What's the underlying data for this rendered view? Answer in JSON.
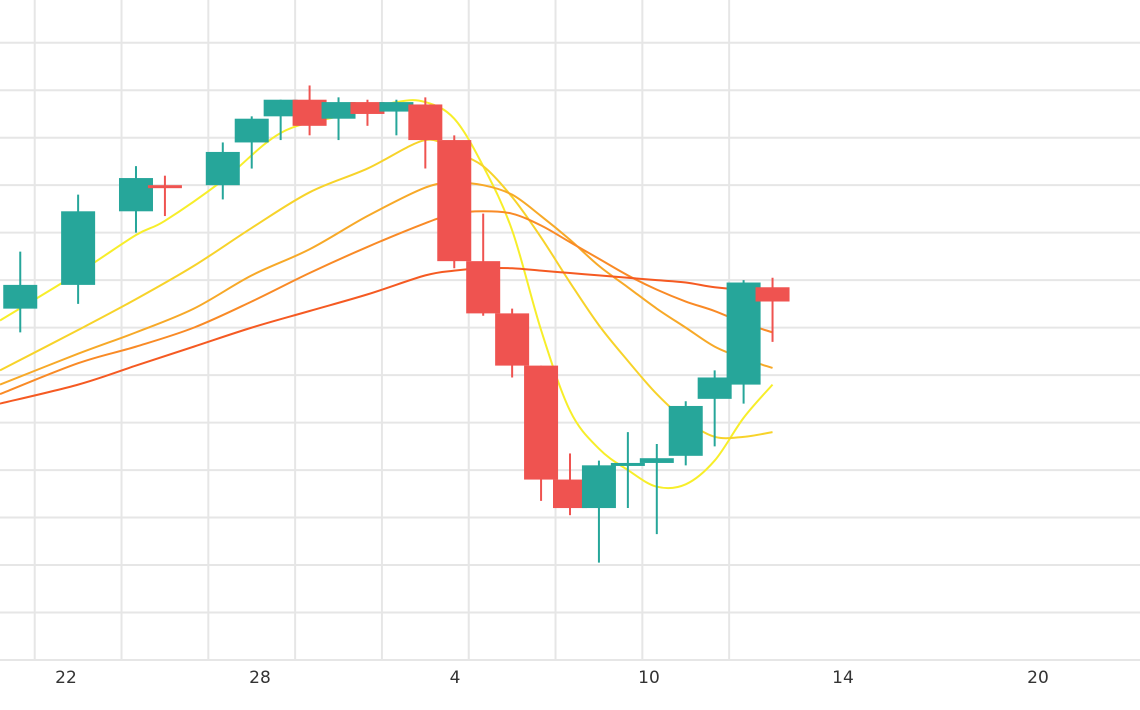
{
  "chart_data": {
    "type": "candlestick",
    "x_tick_labels": [
      "22",
      "28",
      "4",
      "10",
      "14",
      "20"
    ],
    "grid": true,
    "colors": {
      "up": "#26a69a",
      "down": "#ef5350",
      "grid": "#e6e6e6",
      "ma": [
        "#f7ee2a",
        "#f7d32a",
        "#f7a928",
        "#f98a26",
        "#f55a22"
      ]
    },
    "y_range": [
      0,
      13.9
    ],
    "x_range": [
      18.8,
      58.2
    ],
    "candles": [
      {
        "x": 19.5,
        "open": 7.4,
        "high": 8.6,
        "low": 6.9,
        "close": 7.9
      },
      {
        "x": 21.5,
        "open": 7.9,
        "high": 9.8,
        "low": 7.5,
        "close": 9.45
      },
      {
        "x": 23.5,
        "open": 9.45,
        "high": 10.4,
        "low": 9.0,
        "close": 10.15
      },
      {
        "x": 24.5,
        "open": 10.0,
        "high": 10.2,
        "low": 9.35,
        "close": 9.95
      },
      {
        "x": 26.5,
        "open": 10.0,
        "high": 10.9,
        "low": 9.7,
        "close": 10.7
      },
      {
        "x": 27.5,
        "open": 10.9,
        "high": 11.45,
        "low": 10.35,
        "close": 11.4
      },
      {
        "x": 28.5,
        "open": 11.45,
        "high": 11.8,
        "low": 10.95,
        "close": 11.8
      },
      {
        "x": 29.5,
        "open": 11.8,
        "high": 12.1,
        "low": 11.05,
        "close": 11.25
      },
      {
        "x": 30.5,
        "open": 11.4,
        "high": 11.85,
        "low": 10.95,
        "close": 11.75
      },
      {
        "x": 31.5,
        "open": 11.75,
        "high": 11.8,
        "low": 11.25,
        "close": 11.5
      },
      {
        "x": 32.5,
        "open": 11.55,
        "high": 11.8,
        "low": 11.05,
        "close": 11.75
      },
      {
        "x": 33.5,
        "open": 11.7,
        "high": 11.85,
        "low": 10.35,
        "close": 10.95
      },
      {
        "x": 34.5,
        "open": 10.95,
        "high": 11.05,
        "low": 8.25,
        "close": 8.4
      },
      {
        "x": 35.5,
        "open": 8.4,
        "high": 9.4,
        "low": 7.25,
        "close": 7.3
      },
      {
        "x": 36.5,
        "open": 7.3,
        "high": 7.4,
        "low": 5.95,
        "close": 6.2
      },
      {
        "x": 37.5,
        "open": 6.2,
        "high": 6.2,
        "low": 3.35,
        "close": 3.8
      },
      {
        "x": 38.5,
        "open": 3.8,
        "high": 4.35,
        "low": 3.05,
        "close": 3.2
      },
      {
        "x": 39.5,
        "open": 3.2,
        "high": 4.2,
        "low": 2.05,
        "close": 4.1
      },
      {
        "x": 40.5,
        "open": 4.15,
        "high": 4.8,
        "low": 3.2,
        "close": 4.15
      },
      {
        "x": 41.5,
        "open": 4.15,
        "high": 4.55,
        "low": 2.65,
        "close": 4.25
      },
      {
        "x": 42.5,
        "open": 4.3,
        "high": 5.45,
        "low": 4.1,
        "close": 5.35
      },
      {
        "x": 43.5,
        "open": 5.5,
        "high": 6.1,
        "low": 4.5,
        "close": 5.95
      },
      {
        "x": 44.5,
        "open": 5.8,
        "high": 8.0,
        "low": 5.4,
        "close": 7.95
      },
      {
        "x": 45.5,
        "open": 7.85,
        "high": 8.05,
        "low": 6.7,
        "close": 7.55
      }
    ],
    "moving_averages": [
      {
        "points": [
          [
            18.8,
            7.15
          ],
          [
            21.5,
            8.15
          ],
          [
            23.5,
            8.95
          ],
          [
            24.5,
            9.25
          ],
          [
            26.5,
            10.1
          ],
          [
            28.5,
            11.1
          ],
          [
            30.5,
            11.45
          ],
          [
            32.5,
            11.75
          ],
          [
            33.5,
            11.75
          ],
          [
            34.5,
            11.4
          ],
          [
            35.5,
            10.4
          ],
          [
            36.5,
            9.05
          ],
          [
            37.5,
            6.95
          ],
          [
            38.5,
            5.25
          ],
          [
            39.5,
            4.45
          ],
          [
            40.5,
            4.0
          ],
          [
            41.5,
            3.65
          ],
          [
            42.5,
            3.7
          ],
          [
            43.5,
            4.2
          ],
          [
            44.5,
            5.1
          ],
          [
            45.5,
            5.8
          ]
        ],
        "color": "#f7ee2a"
      },
      {
        "points": [
          [
            18.8,
            6.1
          ],
          [
            21.5,
            6.95
          ],
          [
            23.5,
            7.6
          ],
          [
            25.5,
            8.3
          ],
          [
            27.5,
            9.1
          ],
          [
            29.5,
            9.85
          ],
          [
            31.5,
            10.35
          ],
          [
            33.5,
            10.95
          ],
          [
            34.5,
            10.7
          ],
          [
            35.5,
            10.4
          ],
          [
            36.5,
            9.75
          ],
          [
            37.5,
            8.9
          ],
          [
            38.5,
            7.95
          ],
          [
            39.5,
            7.05
          ],
          [
            40.5,
            6.3
          ],
          [
            41.5,
            5.6
          ],
          [
            42.5,
            5.05
          ],
          [
            43.5,
            4.7
          ],
          [
            44.5,
            4.7
          ],
          [
            45.5,
            4.8
          ]
        ],
        "color": "#f7d32a"
      },
      {
        "points": [
          [
            18.8,
            5.8
          ],
          [
            21.5,
            6.45
          ],
          [
            23.5,
            6.9
          ],
          [
            25.5,
            7.4
          ],
          [
            27.5,
            8.1
          ],
          [
            29.5,
            8.65
          ],
          [
            31.5,
            9.35
          ],
          [
            33.5,
            9.95
          ],
          [
            34.5,
            10.05
          ],
          [
            35.5,
            10.0
          ],
          [
            36.5,
            9.8
          ],
          [
            37.5,
            9.35
          ],
          [
            38.5,
            8.85
          ],
          [
            39.5,
            8.3
          ],
          [
            40.5,
            7.85
          ],
          [
            41.5,
            7.4
          ],
          [
            42.5,
            7.0
          ],
          [
            43.5,
            6.6
          ],
          [
            44.5,
            6.35
          ],
          [
            45.5,
            6.15
          ]
        ],
        "color": "#f7a928"
      },
      {
        "points": [
          [
            18.8,
            5.6
          ],
          [
            21.5,
            6.25
          ],
          [
            23.5,
            6.6
          ],
          [
            25.5,
            7.0
          ],
          [
            27.5,
            7.55
          ],
          [
            29.5,
            8.15
          ],
          [
            31.5,
            8.7
          ],
          [
            33.5,
            9.2
          ],
          [
            34.5,
            9.4
          ],
          [
            35.5,
            9.45
          ],
          [
            36.5,
            9.4
          ],
          [
            37.5,
            9.15
          ],
          [
            38.5,
            8.8
          ],
          [
            39.5,
            8.45
          ],
          [
            40.5,
            8.1
          ],
          [
            41.5,
            7.8
          ],
          [
            42.5,
            7.55
          ],
          [
            43.5,
            7.35
          ],
          [
            44.5,
            7.1
          ],
          [
            45.5,
            6.9
          ]
        ],
        "color": "#f98a26"
      },
      {
        "points": [
          [
            18.8,
            5.4
          ],
          [
            21.5,
            5.8
          ],
          [
            23.5,
            6.2
          ],
          [
            25.5,
            6.6
          ],
          [
            27.5,
            7.0
          ],
          [
            29.5,
            7.35
          ],
          [
            31.5,
            7.7
          ],
          [
            33.5,
            8.1
          ],
          [
            34.5,
            8.2
          ],
          [
            35.5,
            8.25
          ],
          [
            36.5,
            8.25
          ],
          [
            37.5,
            8.2
          ],
          [
            38.5,
            8.15
          ],
          [
            39.5,
            8.1
          ],
          [
            40.5,
            8.05
          ],
          [
            41.5,
            8.0
          ],
          [
            42.5,
            7.95
          ],
          [
            43.5,
            7.85
          ],
          [
            44.5,
            7.8
          ],
          [
            45.5,
            7.8
          ]
        ],
        "color": "#f55a22"
      }
    ]
  }
}
